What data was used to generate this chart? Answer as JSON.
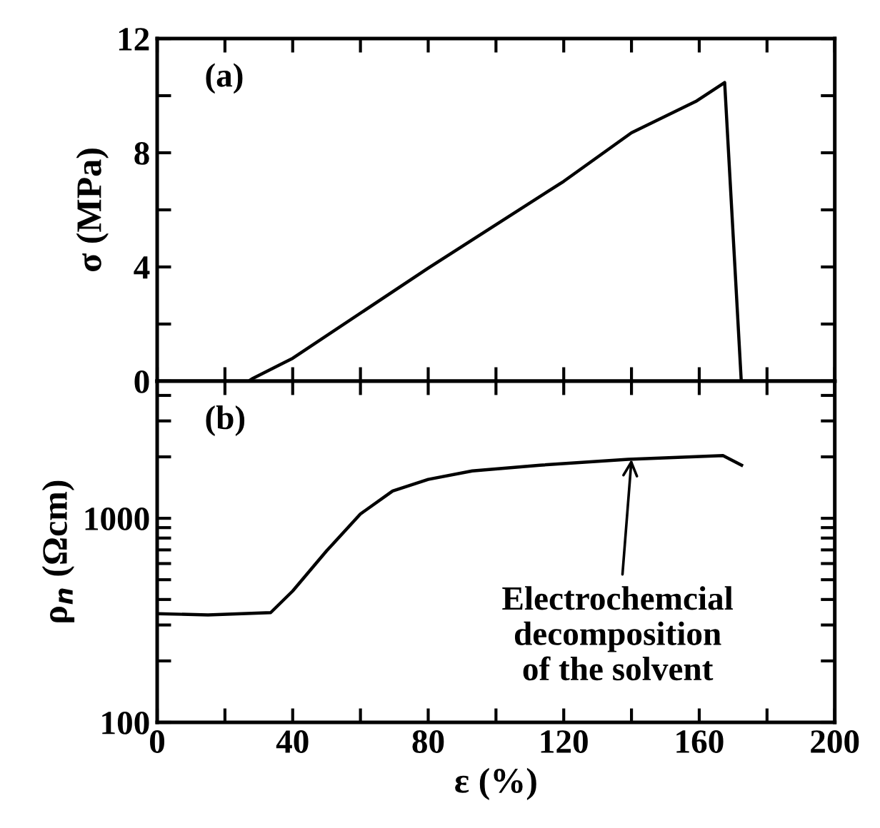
{
  "chart_data": [
    {
      "type": "line",
      "ylabel": "σ (MPa)",
      "annotations": [
        "(a)"
      ],
      "series": [
        {
          "color": "#000000",
          "x": [
            0,
            27,
            28.3,
            40,
            80,
            120,
            140,
            159,
            167.5,
            172.4,
            200
          ],
          "values": [
            0,
            0,
            0.1,
            0.8,
            3.96,
            7.0,
            8.7,
            9.8,
            10.46,
            0,
            0
          ]
        }
      ],
      "xlim": [
        0,
        200
      ],
      "xticks": [
        {
          "value": 0,
          "label": null
        },
        {
          "value": 20,
          "label": null
        },
        {
          "value": 40,
          "label": null
        },
        {
          "value": 60,
          "label": null
        },
        {
          "value": 80,
          "label": null
        },
        {
          "value": 100,
          "label": null
        },
        {
          "value": 120,
          "label": null
        },
        {
          "value": 140,
          "label": null
        },
        {
          "value": 160,
          "label": null
        },
        {
          "value": 180,
          "label": null
        },
        {
          "value": 200,
          "label": null
        }
      ],
      "ylim": [
        0,
        12
      ],
      "yticks": [
        0,
        {
          "value": 2,
          "label": null
        },
        4,
        {
          "value": 6,
          "label": null
        },
        8,
        {
          "value": 10,
          "label": null
        },
        12
      ],
      "tick_labels": "y",
      "grid": false,
      "legend": false,
      "marker": "none",
      "line_style": "solid"
    },
    {
      "type": "line",
      "xlabel": "ε (%)",
      "ylabel": "ρ$_{n}$ (Ωcm)",
      "log": "y",
      "annotations": [
        "(b)",
        {
          "text": "Electrochemcial\ndecomposition\nof the solvent",
          "x": 140,
          "y": 1945
        }
      ],
      "series": [
        {
          "color": "#000000",
          "x": [
            0,
            15,
            33.5,
            40,
            50,
            60,
            69.5,
            80,
            93,
            113,
            139,
            167,
            172.5
          ],
          "values": [
            341,
            336,
            345,
            440,
            692,
            1050,
            1360,
            1550,
            1707,
            1820,
            1945,
            2030,
            1820
          ]
        }
      ],
      "xlim": [
        0,
        200
      ],
      "xticks": [
        0,
        {
          "value": 20,
          "label": null
        },
        40,
        {
          "value": 60,
          "label": null
        },
        80,
        {
          "value": 100,
          "label": null
        },
        120,
        {
          "value": 140,
          "label": null
        },
        160,
        {
          "value": 180,
          "label": null
        },
        200
      ],
      "ylim": [
        100,
        4700
      ],
      "yticks": [
        100,
        {
          "value": 200,
          "label": null
        },
        {
          "value": 300,
          "label": null
        },
        {
          "value": 400,
          "label": null
        },
        {
          "value": 500,
          "label": null
        },
        {
          "value": 600,
          "label": null
        },
        {
          "value": 700,
          "label": null
        },
        {
          "value": 800,
          "label": null
        },
        {
          "value": 900,
          "label": null
        },
        1000,
        {
          "value": 2000,
          "label": null
        },
        {
          "value": 3000,
          "label": null
        },
        {
          "value": 4000,
          "label": null
        }
      ],
      "grid": false,
      "legend": false,
      "marker": "none",
      "line_style": "solid"
    }
  ]
}
